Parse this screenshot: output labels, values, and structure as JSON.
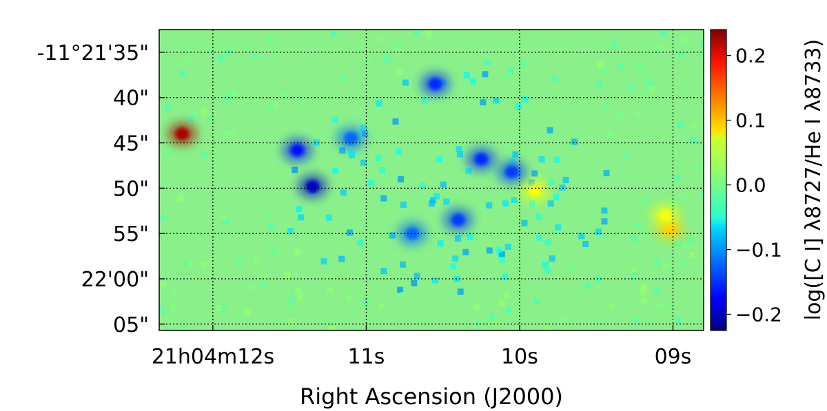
{
  "chart_data": {
    "type": "heatmap",
    "xlabel": "Right Ascension (J2000)",
    "ylabel": "",
    "x_ticks": [
      "21h04m12s",
      "11s",
      "10s",
      "09s"
    ],
    "x_tick_seconds": [
      12,
      11,
      10,
      9
    ],
    "x_range_seconds": [
      12.35,
      8.8
    ],
    "y_ticks": [
      "-11°21'35\"",
      "40\"",
      "45\"",
      "50\"",
      "55\"",
      "22'00\"",
      "05\""
    ],
    "y_tick_arcsec": [
      35,
      40,
      45,
      50,
      55,
      60,
      65
    ],
    "y_range_arcsec": [
      32.5,
      65.7
    ],
    "grid": true,
    "colorbar": {
      "label": "log([C I] λ8727/He I λ8733)",
      "ticks": [
        "0.2",
        "0.1",
        "0.0",
        "−0.1",
        "−0.2"
      ],
      "tick_values": [
        0.2,
        0.1,
        0.0,
        -0.1,
        -0.2
      ],
      "range": [
        -0.225,
        0.24
      ],
      "colormap": "jet"
    },
    "features": [
      {
        "ra_s": 12.2,
        "dec_arcsec": 44.0,
        "value": 0.22
      },
      {
        "ra_s": 9.02,
        "dec_arcsec": 54.5,
        "value": 0.09
      },
      {
        "ra_s": 9.05,
        "dec_arcsec": 53.0,
        "value": 0.06
      },
      {
        "ra_s": 9.9,
        "dec_arcsec": 50.3,
        "value": 0.06
      },
      {
        "ra_s": 11.35,
        "dec_arcsec": 49.8,
        "value": -0.19
      },
      {
        "ra_s": 11.45,
        "dec_arcsec": 45.8,
        "value": -0.16
      },
      {
        "ra_s": 11.1,
        "dec_arcsec": 44.5,
        "value": -0.12
      },
      {
        "ra_s": 10.55,
        "dec_arcsec": 38.5,
        "value": -0.15
      },
      {
        "ra_s": 10.25,
        "dec_arcsec": 46.8,
        "value": -0.15
      },
      {
        "ra_s": 10.05,
        "dec_arcsec": 48.2,
        "value": -0.14
      },
      {
        "ra_s": 10.4,
        "dec_arcsec": 53.5,
        "value": -0.14
      },
      {
        "ra_s": 10.7,
        "dec_arcsec": 55.0,
        "value": -0.12
      }
    ]
  }
}
